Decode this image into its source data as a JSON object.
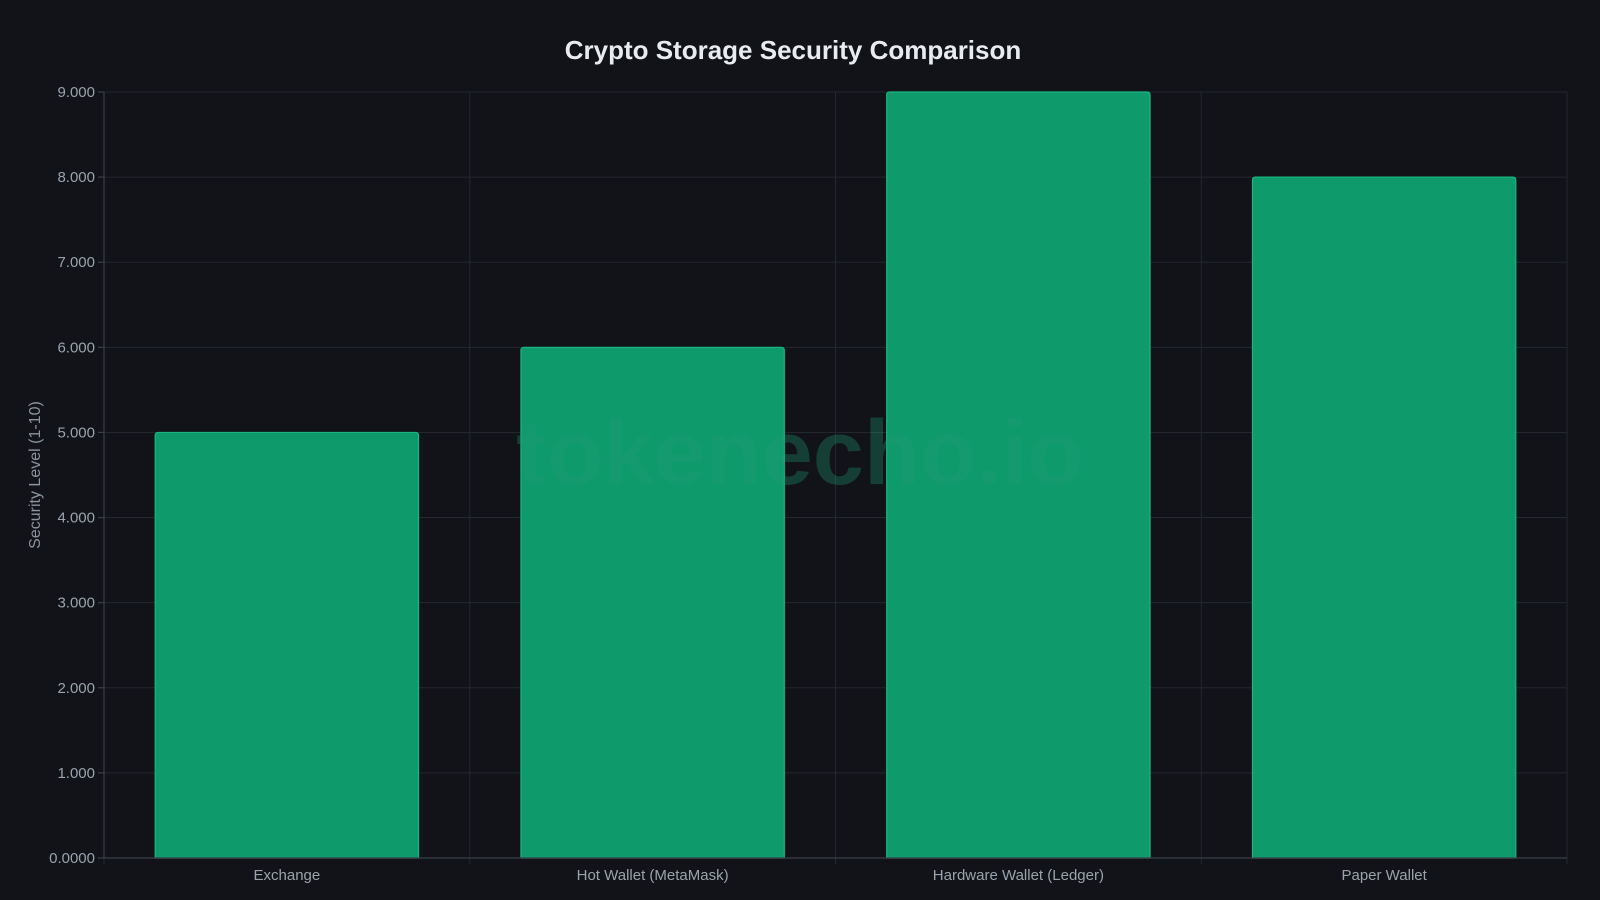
{
  "watermark": "tokenecho.io",
  "colors": {
    "background": "#111318",
    "bar_fill": "#0f9a6c",
    "bar_stroke": "#19b681",
    "grid": "#23272e",
    "text": "#9aa3ad",
    "title": "#e8ecef"
  },
  "chart_data": {
    "type": "bar",
    "title": "Crypto Storage Security Comparison",
    "xlabel": "",
    "ylabel": "Security Level (1-10)",
    "categories": [
      "Exchange",
      "Hot Wallet (MetaMask)",
      "Hardware Wallet (Ledger)",
      "Paper Wallet"
    ],
    "values": [
      5,
      6,
      9,
      8
    ],
    "ylim": [
      0,
      9
    ],
    "yticks": [
      0,
      1,
      2,
      3,
      4,
      5,
      6,
      7,
      8,
      9
    ],
    "ytick_labels": [
      "0.0000",
      "1.000",
      "2.000",
      "3.000",
      "4.000",
      "5.000",
      "6.000",
      "7.000",
      "8.000",
      "9.000"
    ],
    "grid": true,
    "legend": "none"
  }
}
